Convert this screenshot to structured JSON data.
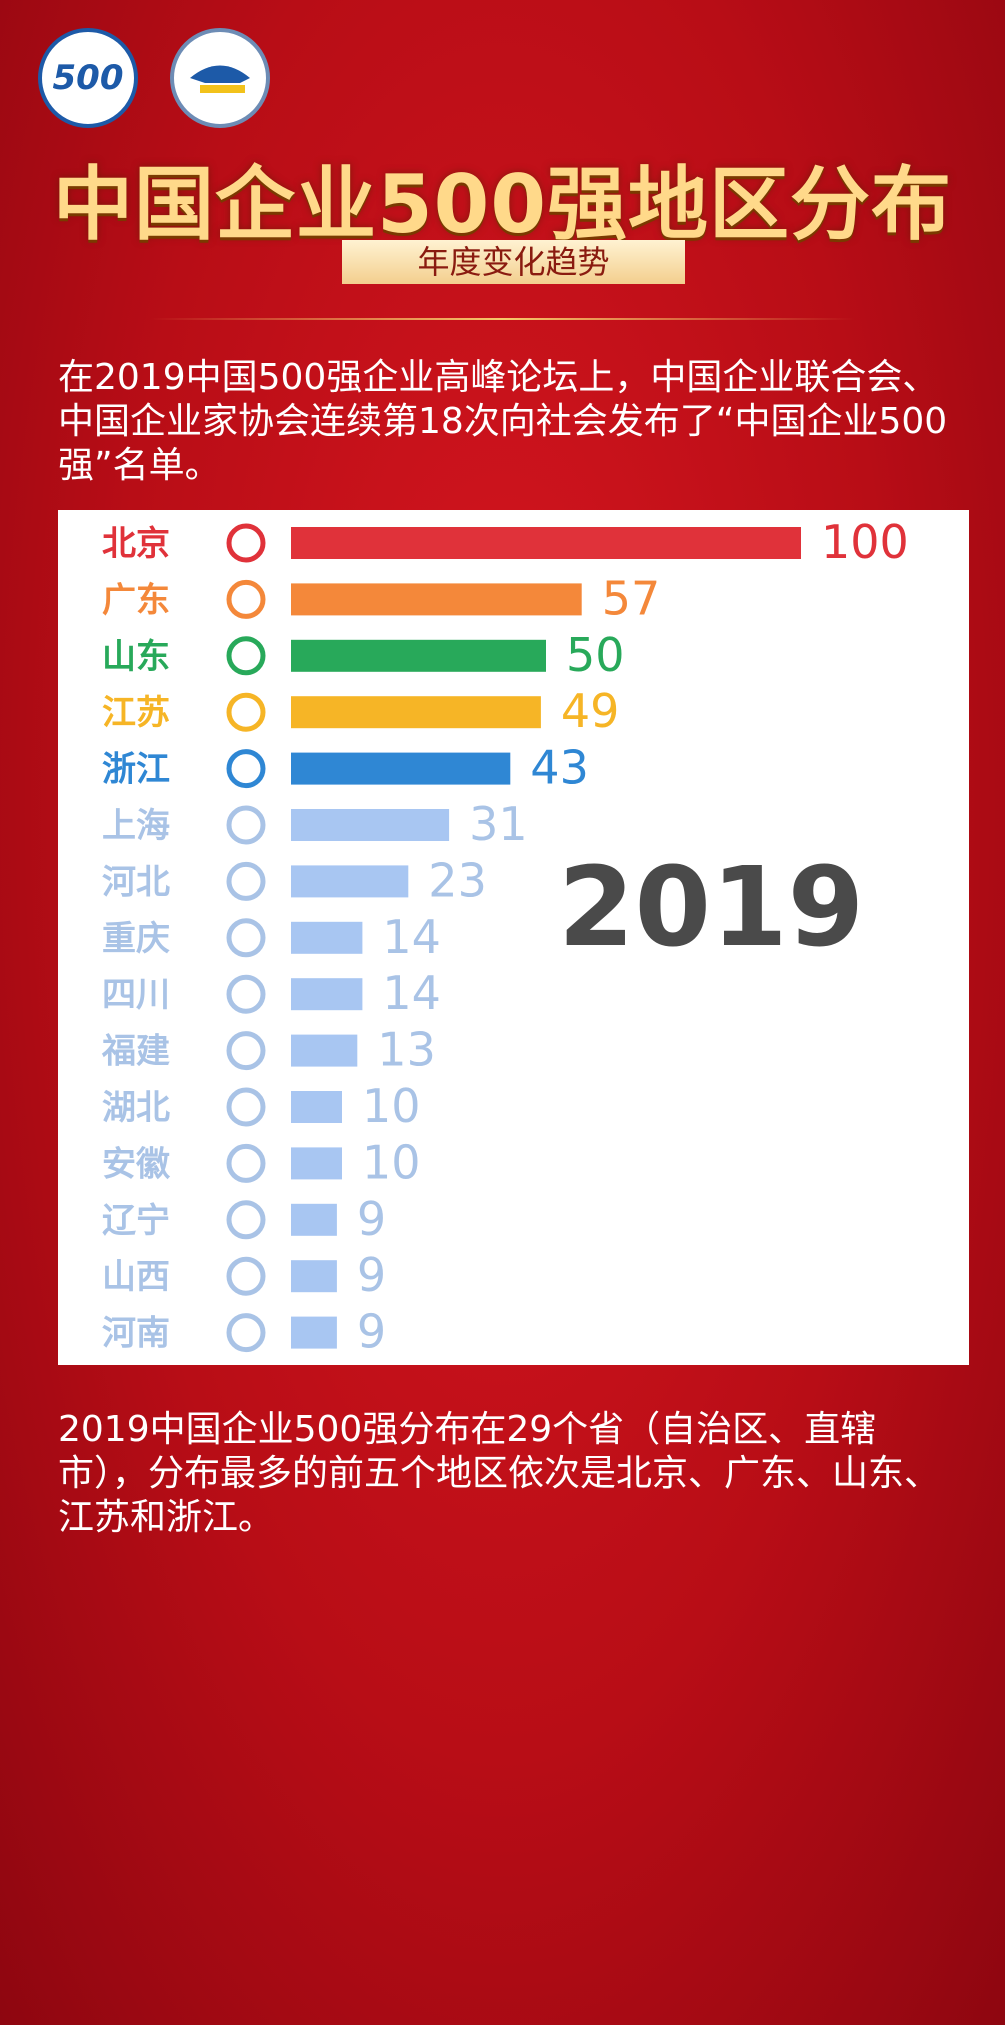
{
  "header": {
    "logo_text": "500",
    "title": "中国企业500强地区分布",
    "subtitle": "年度变化趋势"
  },
  "intro": "在2019中国500强企业高峰论坛上，中国企业联合会、中国企业家协会连续第18次向社会发布了“中国企业500强”名单。",
  "chart_data": {
    "type": "bar",
    "orientation": "horizontal",
    "year_label": "2019",
    "categories": [
      "北京",
      "广东",
      "山东",
      "江苏",
      "浙江",
      "上海",
      "河北",
      "重庆",
      "四川",
      "福建",
      "湖北",
      "安徽",
      "辽宁",
      "山西",
      "河南"
    ],
    "values": [
      100,
      57,
      50,
      49,
      43,
      31,
      23,
      14,
      14,
      13,
      10,
      10,
      9,
      9,
      9
    ],
    "colors": [
      "#e0323a",
      "#f4883a",
      "#28a95a",
      "#f6b526",
      "#2f87d4",
      "#a8c6f2",
      "#a8c6f2",
      "#a8c6f2",
      "#a8c6f2",
      "#a8c6f2",
      "#a8c6f2",
      "#a8c6f2",
      "#a8c6f2",
      "#a8c6f2",
      "#a8c6f2"
    ],
    "xlim": [
      0,
      100
    ]
  },
  "footer": "2019中国企业500强分布在29个省（自治区、直辖市），分布最多的前五个地区依次是北京、广东、山东、江苏和浙江。"
}
